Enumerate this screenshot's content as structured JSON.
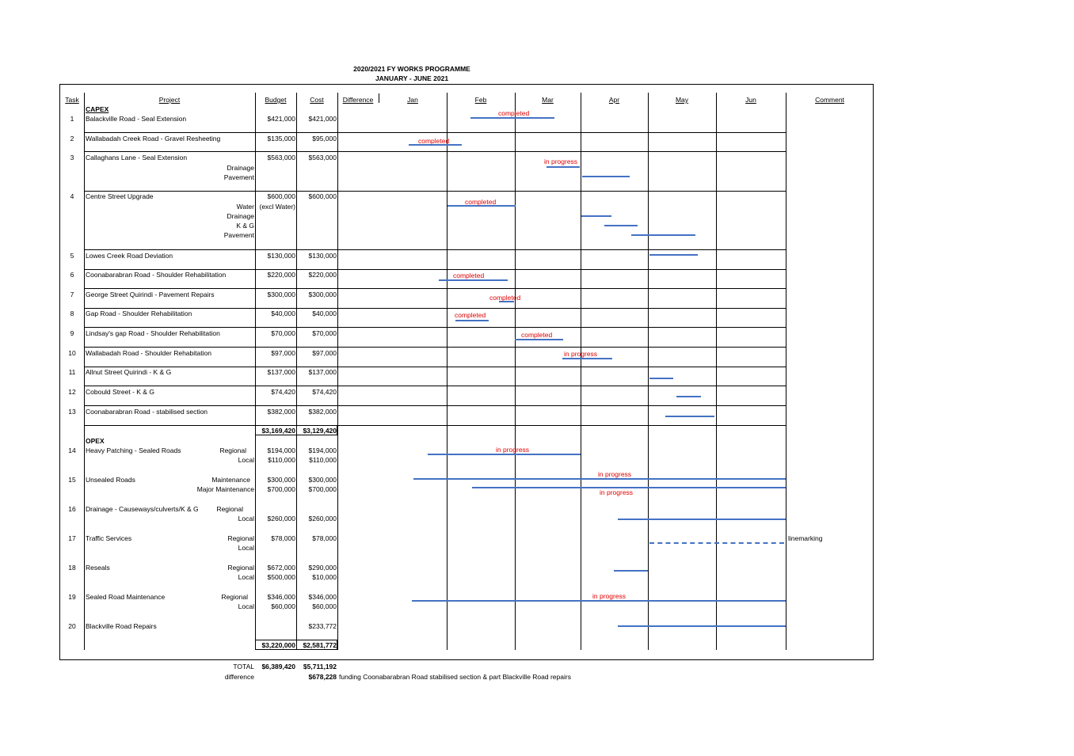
{
  "title": "2020/2021 FY WORKS PROGRAMME",
  "subtitle": "JANUARY - JUNE 2021",
  "headers": {
    "task": "Task",
    "project": "Project",
    "budget": "Budget",
    "cost": "Cost",
    "difference": "Difference",
    "comment": "Comment"
  },
  "months": [
    "Jan",
    "Feb",
    "Mar",
    "Apr",
    "May",
    "Jun"
  ],
  "sections": {
    "capex": "CAPEX",
    "opex": "OPEX"
  },
  "tasks": [
    {
      "no": "1",
      "name": "Balackville Road - Seal Extension",
      "budget": "$421,000",
      "cost": "$421,000"
    },
    {
      "no": "2",
      "name": "Wallabadah Creek Road - Gravel Resheeting",
      "budget": "$135,000",
      "cost": "$95,000"
    },
    {
      "no": "3",
      "name": "Callaghans Lane - Seal Extension",
      "budget": "$563,000",
      "cost": "$563,000",
      "subs": [
        "Drainage",
        "Pavement"
      ]
    },
    {
      "no": "4",
      "name": "Centre Street Upgrade",
      "budget": "$600,000",
      "cost": "$600,000",
      "subs": [
        "Water",
        "Drainage",
        "K & G",
        "Pavement"
      ],
      "note": "(excl Water)"
    },
    {
      "no": "5",
      "name": "Lowes Creek Road Deviation",
      "budget": "$130,000",
      "cost": "$130,000"
    },
    {
      "no": "6",
      "name": "Coonabarabran Road - Shoulder Rehabilitation",
      "budget": "$220,000",
      "cost": "$220,000"
    },
    {
      "no": "7",
      "name": "George Street Quirindi - Pavement Repairs",
      "budget": "$300,000",
      "cost": "$300,000"
    },
    {
      "no": "8",
      "name": "Gap Road - Shoulder Rehabilitation",
      "budget": "$40,000",
      "cost": "$40,000"
    },
    {
      "no": "9",
      "name": "Lindsay's gap Road - Shoulder Rehabilitation",
      "budget": "$70,000",
      "cost": "$70,000"
    },
    {
      "no": "10",
      "name": "Wallabadah Road - Shoulder Rehabitation",
      "budget": "$97,000",
      "cost": "$97,000"
    },
    {
      "no": "11",
      "name": "Allnut Street Quirindi - K & G",
      "budget": "$137,000",
      "cost": "$137,000"
    },
    {
      "no": "12",
      "name": "Cobould Street - K & G",
      "budget": "$74,420",
      "cost": "$74,420"
    },
    {
      "no": "13",
      "name": "Coonabarabran Road - stabilised section",
      "budget": "$382,000",
      "cost": "$382,000"
    }
  ],
  "capex_total": {
    "budget": "$3,169,420",
    "cost": "$3,129,420"
  },
  "opex": [
    {
      "no": "14",
      "name": "Heavy Patching - Sealed Roads",
      "lines": [
        {
          "sub": "Regional",
          "budget": "$194,000",
          "cost": "$194,000"
        },
        {
          "sub": "Local",
          "budget": "$110,000",
          "cost": "$110,000"
        }
      ]
    },
    {
      "no": "15",
      "name": "Unsealed Roads",
      "lines": [
        {
          "sub": "Maintenance",
          "budget": "$300,000",
          "cost": "$300,000"
        },
        {
          "sub": "Major Maintenance",
          "budget": "$700,000",
          "cost": "$700,000"
        }
      ]
    },
    {
      "no": "16",
      "name": "Drainage - Causeways/culverts/K & G",
      "lines": [
        {
          "sub": "Regional",
          "budget": "",
          "cost": ""
        },
        {
          "sub": "Local",
          "budget": "$260,000",
          "cost": "$260,000"
        }
      ]
    },
    {
      "no": "17",
      "name": "Traffic Services",
      "lines": [
        {
          "sub": "Regional",
          "budget": "$78,000",
          "cost": "$78,000"
        },
        {
          "sub": "Local",
          "budget": "",
          "cost": ""
        }
      ],
      "comment": "linemarking"
    },
    {
      "no": "18",
      "name": "Reseals",
      "lines": [
        {
          "sub": "Regional",
          "budget": "$672,000",
          "cost": "$290,000"
        },
        {
          "sub": "Local",
          "budget": "$500,000",
          "cost": "$10,000"
        }
      ]
    },
    {
      "no": "19",
      "name": "Sealed Road Maintenance",
      "lines": [
        {
          "sub": "Regional",
          "budget": "$346,000",
          "cost": "$346,000"
        },
        {
          "sub": "Local",
          "budget": "$60,000",
          "cost": "$60,000"
        }
      ]
    },
    {
      "no": "20",
      "name": "Blackville Road Repairs",
      "lines": [
        {
          "sub": "",
          "budget": "",
          "cost": "$233,772"
        }
      ]
    }
  ],
  "opex_total": {
    "budget": "$3,220,000",
    "cost": "$2,581,772"
  },
  "footer": {
    "total_label": "TOTAL",
    "total_budget": "$6,389,420",
    "total_cost": "$5,711,192",
    "difference_label": "difference",
    "difference_value": "$678,228",
    "difference_note": "funding Coonabarabran Road stabilised section & part Blackville Road repairs"
  },
  "status": {
    "completed": "completed",
    "in_progress": "in progress"
  },
  "colors": {
    "bar": "#4472c4",
    "status_text": "#e00000"
  }
}
